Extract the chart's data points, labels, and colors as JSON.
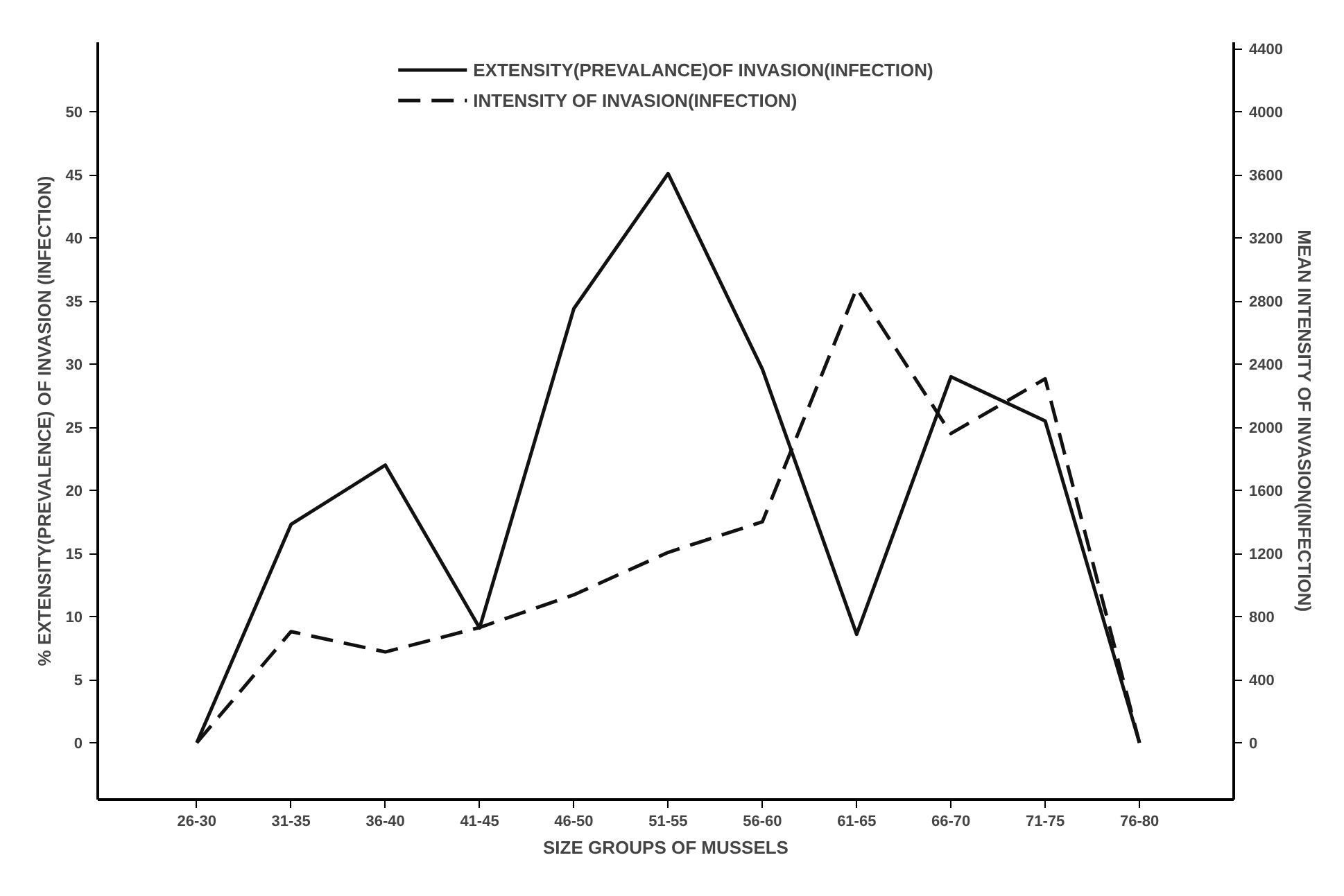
{
  "chart_data": {
    "type": "line",
    "xlabel": "SIZE GROUPS OF MUSSELS",
    "ylabel": "% EXTENSITY(PREVALENCE) OF INVASION (INFECTION)",
    "y2label": "MEAN INTENSITY OF INVASION(INFECTION)",
    "categories": [
      "26-30",
      "31-35",
      "36-40",
      "41-45",
      "46-50",
      "51-55",
      "56-60",
      "61-65",
      "66-70",
      "71-75",
      "76-80"
    ],
    "series": [
      {
        "name": "EXTENSITY(PREVALANCE)OF INVASION(INFECTION)",
        "color": "#111111",
        "line_style": "solid",
        "values": [
          0,
          17.3,
          22.0,
          9.1,
          34.4,
          45.1,
          29.6,
          8.6,
          29.0,
          25.5,
          0
        ]
      },
      {
        "name": "INTENSITY OF INVASION(INFECTION)",
        "color": "#111111",
        "line_style": "dashed",
        "axis": "y2",
        "values": [
          0,
          705,
          576,
          731,
          938,
          1207,
          1401,
          2880,
          1960,
          2307,
          0
        ]
      }
    ],
    "ylim": [
      -4.5,
      55.5
    ],
    "yticks": [
      0,
      5,
      10,
      15,
      20,
      25,
      30,
      35,
      40,
      45,
      50
    ],
    "y2lim": [
      -360,
      4440
    ],
    "y2ticks": [
      0,
      400,
      800,
      1200,
      1600,
      2000,
      2400,
      2800,
      3200,
      3600,
      4000,
      4400
    ],
    "grid": false,
    "legend": "top",
    "marker": "none"
  }
}
